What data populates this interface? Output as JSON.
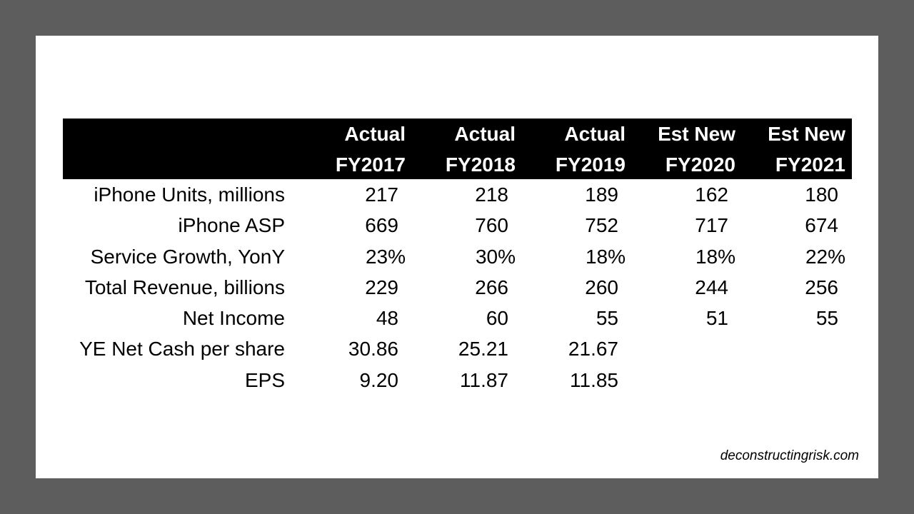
{
  "table": {
    "headers": [
      {
        "line1": "Actual",
        "line2": "FY2017"
      },
      {
        "line1": "Actual",
        "line2": "FY2018"
      },
      {
        "line1": "Actual",
        "line2": "FY2019"
      },
      {
        "line1": "Est New",
        "line2": "FY2020"
      },
      {
        "line1": "Est New",
        "line2": "FY2021"
      }
    ],
    "rows": [
      {
        "label": "iPhone Units, millions",
        "values": [
          "217",
          "218",
          "189",
          "162",
          "180"
        ]
      },
      {
        "label": "iPhone ASP",
        "values": [
          "669",
          "760",
          "752",
          "717",
          "674"
        ]
      },
      {
        "label": "Service Growth, YonY",
        "values": [
          "23%",
          "30%",
          "18%",
          "18%",
          "22%"
        ]
      },
      {
        "label": "Total Revenue, billions",
        "values": [
          "229",
          "266",
          "260",
          "244",
          "256"
        ]
      },
      {
        "label": "Net Income",
        "values": [
          "48",
          "60",
          "55",
          "51",
          "55"
        ]
      },
      {
        "label": "YE Net Cash per share",
        "values": [
          "30.86",
          "25.21",
          "21.67",
          "",
          ""
        ]
      },
      {
        "label": "EPS",
        "values": [
          "9.20",
          "11.87",
          "11.85",
          "",
          ""
        ]
      }
    ]
  },
  "source": "deconstructingrisk.com"
}
